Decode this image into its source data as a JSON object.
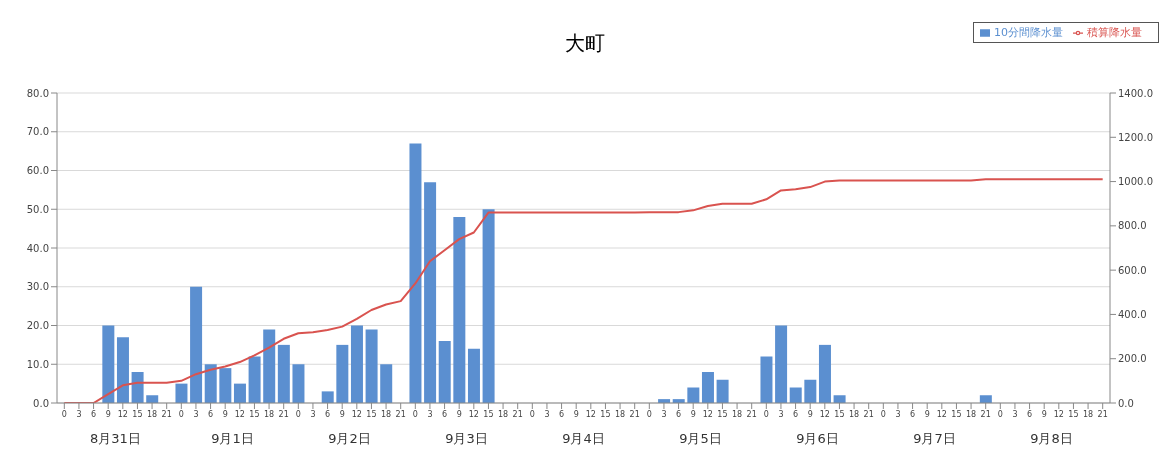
{
  "chart_data": {
    "type": "bar",
    "title": "大町",
    "categories": [
      "0",
      "3",
      "6",
      "9",
      "12",
      "15",
      "18",
      "21",
      "0",
      "3",
      "6",
      "9",
      "12",
      "15",
      "18",
      "21",
      "0",
      "3",
      "6",
      "9",
      "12",
      "15",
      "18",
      "21",
      "0",
      "3",
      "6",
      "9",
      "12",
      "15",
      "18",
      "21",
      "0",
      "3",
      "6",
      "9",
      "12",
      "15",
      "18",
      "21",
      "0",
      "3",
      "6",
      "9",
      "12",
      "15",
      "18",
      "21",
      "0",
      "3",
      "6",
      "9",
      "12",
      "15",
      "18",
      "21",
      "0",
      "3",
      "6",
      "9",
      "12",
      "15",
      "18",
      "21",
      "0",
      "3",
      "6",
      "9",
      "12",
      "15",
      "18",
      "21"
    ],
    "series": [
      {
        "name": "10分間降水量",
        "color": "#5b8fd0",
        "values": [
          0,
          0,
          0,
          20,
          17,
          8,
          2,
          0,
          5,
          30,
          10,
          9,
          5,
          12,
          19,
          15,
          10,
          0,
          3,
          15,
          20,
          19,
          10,
          0,
          67,
          57,
          16,
          48,
          14,
          50,
          0,
          0,
          0,
          0,
          0,
          0,
          0,
          0,
          0,
          0,
          0,
          1,
          1,
          4,
          8,
          6,
          0,
          0,
          12,
          20,
          4,
          6,
          15,
          2,
          0,
          0,
          0,
          0,
          0,
          0,
          0,
          0,
          0,
          2,
          0,
          0,
          0,
          0,
          0,
          0,
          0,
          0
        ]
      },
      {
        "name": "積算降水量",
        "type": "line",
        "axis": "y2",
        "color": "#d9534f",
        "values": [
          0,
          0,
          0,
          40,
          80,
          91,
          91,
          91,
          100,
          130,
          150,
          165,
          185,
          215,
          250,
          290,
          315,
          320,
          330,
          345,
          380,
          420,
          445,
          460,
          540,
          640,
          690,
          740,
          770,
          860,
          860,
          860,
          860,
          860,
          860,
          860,
          860,
          860,
          860,
          860,
          862,
          862,
          862,
          870,
          890,
          900,
          900,
          900,
          920,
          960,
          965,
          975,
          1000,
          1005,
          1005,
          1005,
          1005,
          1005,
          1005,
          1005,
          1005,
          1005,
          1005,
          1010,
          1010,
          1010,
          1010,
          1010,
          1010,
          1010,
          1010,
          1010
        ]
      }
    ],
    "ylim": [
      0,
      80
    ],
    "yticks": [
      {
        "value": 0,
        "label": "0.0"
      },
      {
        "value": 10,
        "label": "10.0"
      },
      {
        "value": 20,
        "label": "20.0"
      },
      {
        "value": 30,
        "label": "30.0"
      },
      {
        "value": 40,
        "label": "40.0"
      },
      {
        "value": 50,
        "label": "50.0"
      },
      {
        "value": 60,
        "label": "60.0"
      },
      {
        "value": 70,
        "label": "70.0"
      },
      {
        "value": 80,
        "label": "80.0"
      }
    ],
    "y2lim": [
      0,
      1400
    ],
    "y2ticks": [
      {
        "value": 0,
        "label": "0.0"
      },
      {
        "value": 200,
        "label": "200.0"
      },
      {
        "value": 400,
        "label": "400.0"
      },
      {
        "value": 600,
        "label": "600.0"
      },
      {
        "value": 800,
        "label": "800.0"
      },
      {
        "value": 1000,
        "label": "1000.0"
      },
      {
        "value": 1200,
        "label": "1200.0"
      },
      {
        "value": 1400,
        "label": "1400.0"
      }
    ],
    "annotations": [
      "8月31日",
      "9月1日",
      "9月2日",
      "9月3日",
      "9月4日",
      "9月5日",
      "9月6日",
      "9月7日",
      "9月8日"
    ],
    "grid": "y",
    "legend": "top right",
    "marker": "none"
  }
}
